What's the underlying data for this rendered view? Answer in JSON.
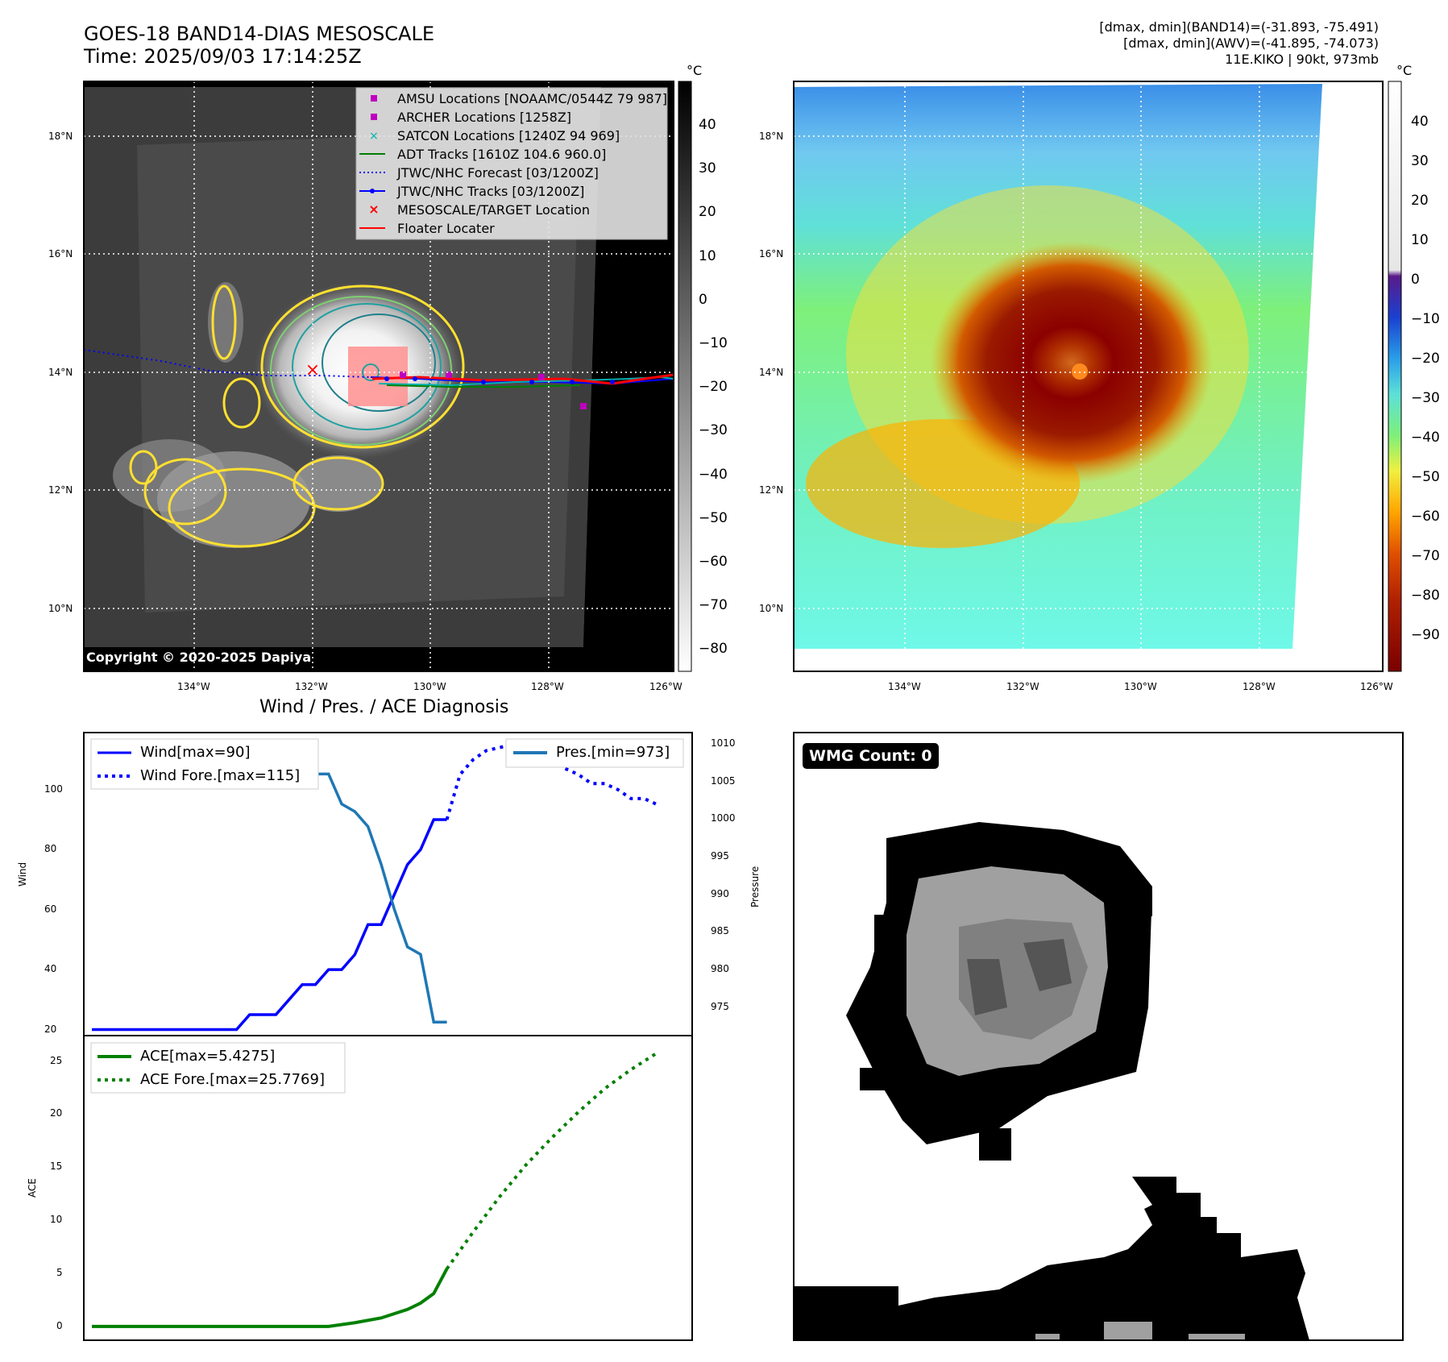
{
  "header": {
    "title_line1": "GOES-18 BAND14-DIAS MESOSCALE",
    "title_line2": "Time: 2025/09/03 17:14:25Z",
    "stats_line1": "[dmax, dmin](BAND14)=(-31.893, -75.491)",
    "stats_line2": "[dmax, dmin](AWV)=(-41.895, -74.073)",
    "stats_line3": "11E.KIKO | 90kt, 973mb"
  },
  "map": {
    "lat_labels": [
      "18°N",
      "16°N",
      "14°N",
      "12°N",
      "10°N"
    ],
    "lon_labels": [
      "134°W",
      "132°W",
      "130°W",
      "128°W",
      "126°W"
    ],
    "copyright": "Copyright © 2020-2025 Dapiya",
    "legend": [
      {
        "label": "AMSU Locations [NOAAMC/0544Z 79 987]",
        "color": "#c000c0",
        "marker": "square"
      },
      {
        "label": "ARCHER Locations [1258Z]",
        "color": "#c000c0",
        "marker": "square"
      },
      {
        "label": "SATCON Locations [1240Z 94 969]",
        "color": "#00b0b0",
        "marker": "x"
      },
      {
        "label": "ADT Tracks [1610Z 104.6 960.0]",
        "color": "#008000",
        "marker": "line"
      },
      {
        "label": "JTWC/NHC Forecast [03/1200Z]",
        "color": "#0000ff",
        "marker": "dotted"
      },
      {
        "label": "JTWC/NHC Tracks [03/1200Z]",
        "color": "#0000ff",
        "marker": "line-dot"
      },
      {
        "label": "MESOSCALE/TARGET Location",
        "color": "#ff0000",
        "marker": "x"
      },
      {
        "label": "Floater Locater",
        "color": "#ff0000",
        "marker": "line"
      }
    ]
  },
  "colorbars": {
    "unit": "°C",
    "gray_ticks": [
      "40",
      "30",
      "20",
      "10",
      "0",
      "−10",
      "−20",
      "−30",
      "−40",
      "−50",
      "−60",
      "−70",
      "−80"
    ],
    "color_ticks": [
      "40",
      "30",
      "20",
      "10",
      "0",
      "−10",
      "−20",
      "−30",
      "−40",
      "−50",
      "−60",
      "−70",
      "−80",
      "−90"
    ]
  },
  "wmg": {
    "count_label": "WMG Count: 0"
  },
  "chart_data": [
    {
      "type": "line",
      "title": "Wind / Pres. / ACE Diagnosis",
      "ylabel": "Wind",
      "y2label": "Pressure",
      "ylim": [
        18,
        119
      ],
      "y2lim": [
        971.2,
        1011.5
      ],
      "yticks": [
        "20",
        "40",
        "60",
        "80",
        "100"
      ],
      "y2ticks": [
        "975",
        "980",
        "985",
        "990",
        "995",
        "1000",
        "1005",
        "1010"
      ],
      "legend_left": [
        "Wind[max=90]",
        "Wind Fore.[max=115]"
      ],
      "legend_right": [
        "Pres.[min=973]"
      ],
      "series": [
        {
          "name": "Wind[max=90]",
          "axis": "left",
          "color": "#0000ff",
          "style": "solid",
          "x": [
            0,
            11,
            12,
            14,
            15,
            16,
            17,
            18,
            19,
            20,
            21,
            22,
            23,
            24,
            25,
            26,
            27
          ],
          "values": [
            20,
            20,
            25,
            25,
            30,
            35,
            35,
            40,
            40,
            45,
            55,
            55,
            65,
            75,
            80,
            90,
            90
          ]
        },
        {
          "name": "Wind Fore.[max=115]",
          "axis": "left",
          "color": "#0000ff",
          "style": "dotted",
          "x": [
            27,
            28,
            29,
            30,
            32,
            33,
            34,
            35,
            36,
            37,
            38,
            39,
            40,
            41,
            42,
            43
          ],
          "values": [
            90,
            105,
            110,
            113,
            115,
            115,
            112,
            110,
            107,
            105,
            102,
            102,
            100,
            97,
            97,
            95
          ]
        },
        {
          "name": "Pres.[min=973]",
          "axis": "right",
          "color": "#1f77b4",
          "style": "solid",
          "x": [
            0,
            7,
            8,
            9,
            10,
            11,
            12,
            13,
            14,
            15,
            16,
            17,
            18,
            19,
            20,
            21,
            22,
            23,
            24,
            25,
            26,
            27
          ],
          "values": [
            1010,
            1010,
            1010,
            1010,
            1010,
            1010,
            1010,
            1009,
            1009,
            1009,
            1007,
            1006,
            1006,
            1002,
            1001,
            999,
            994,
            988,
            983,
            982,
            973,
            973
          ]
        }
      ]
    },
    {
      "type": "line",
      "ylabel": "ACE",
      "ylim": [
        -1.3,
        27.4
      ],
      "yticks": [
        "0",
        "5",
        "10",
        "15",
        "20",
        "25"
      ],
      "legend": [
        "ACE[max=5.4275]",
        "ACE Fore.[max=25.7769]"
      ],
      "series": [
        {
          "name": "ACE[max=5.4275]",
          "color": "#008000",
          "style": "solid",
          "x": [
            0,
            18,
            20,
            22,
            24,
            25,
            26,
            27
          ],
          "values": [
            0,
            0,
            0.35,
            0.8,
            1.6,
            2.2,
            3.1,
            5.43
          ]
        },
        {
          "name": "ACE Fore.[max=25.7769]",
          "color": "#008000",
          "style": "dotted",
          "x": [
            27,
            29,
            31,
            33,
            35,
            37,
            39,
            41,
            43
          ],
          "values": [
            5.43,
            8.9,
            12.2,
            15.2,
            17.8,
            20.2,
            22.4,
            24.2,
            25.78
          ]
        }
      ]
    }
  ]
}
